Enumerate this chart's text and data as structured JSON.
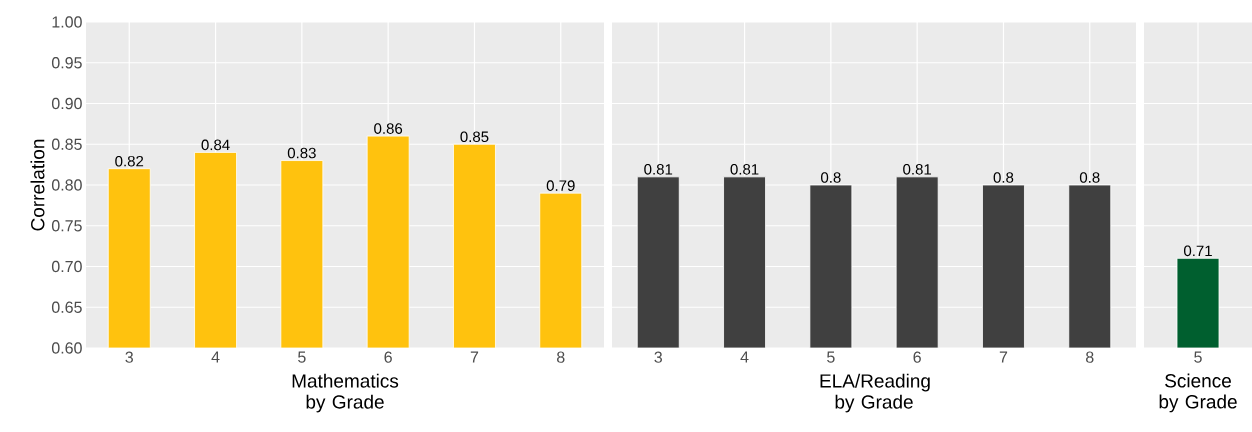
{
  "chart_data": [
    {
      "type": "bar",
      "categories": [
        "3",
        "4",
        "5",
        "6",
        "7",
        "8"
      ],
      "values": [
        0.82,
        0.84,
        0.83,
        0.86,
        0.85,
        0.79
      ],
      "color": "#ffc20e",
      "xlabel": "Mathematics by Grade",
      "ylabel": "Correlation",
      "ylim": [
        0.6,
        1.0
      ],
      "yticks": [
        {
          "value": 0.6,
          "label": "0.60"
        },
        {
          "value": 0.65,
          "label": "0.65"
        },
        {
          "value": 0.7,
          "label": "0.70"
        },
        {
          "value": 0.75,
          "label": "0.75"
        },
        {
          "value": 0.8,
          "label": "0.80"
        },
        {
          "value": 0.85,
          "label": "0.85"
        },
        {
          "value": 0.9,
          "label": "0.90"
        },
        {
          "value": 0.95,
          "label": "0.95"
        },
        {
          "value": 1.0,
          "label": "1.00"
        }
      ],
      "grid": true,
      "data_labels": true
    },
    {
      "type": "bar",
      "categories": [
        "3",
        "4",
        "5",
        "6",
        "7",
        "8"
      ],
      "values": [
        0.81,
        0.81,
        0.8,
        0.81,
        0.8,
        0.8
      ],
      "color": "#404040",
      "xlabel": "ELA/Reading by Grade",
      "ylim": [
        0.6,
        1.0
      ],
      "tick_labels": "x",
      "grid": true,
      "data_labels": true
    },
    {
      "type": "bar",
      "categories": [
        "5"
      ],
      "values": [
        0.71
      ],
      "color": "#005f2f",
      "xlabel": "Science by Grade",
      "ylim": [
        0.6,
        1.0
      ],
      "tick_labels": "x",
      "grid": true,
      "data_labels": true
    }
  ]
}
